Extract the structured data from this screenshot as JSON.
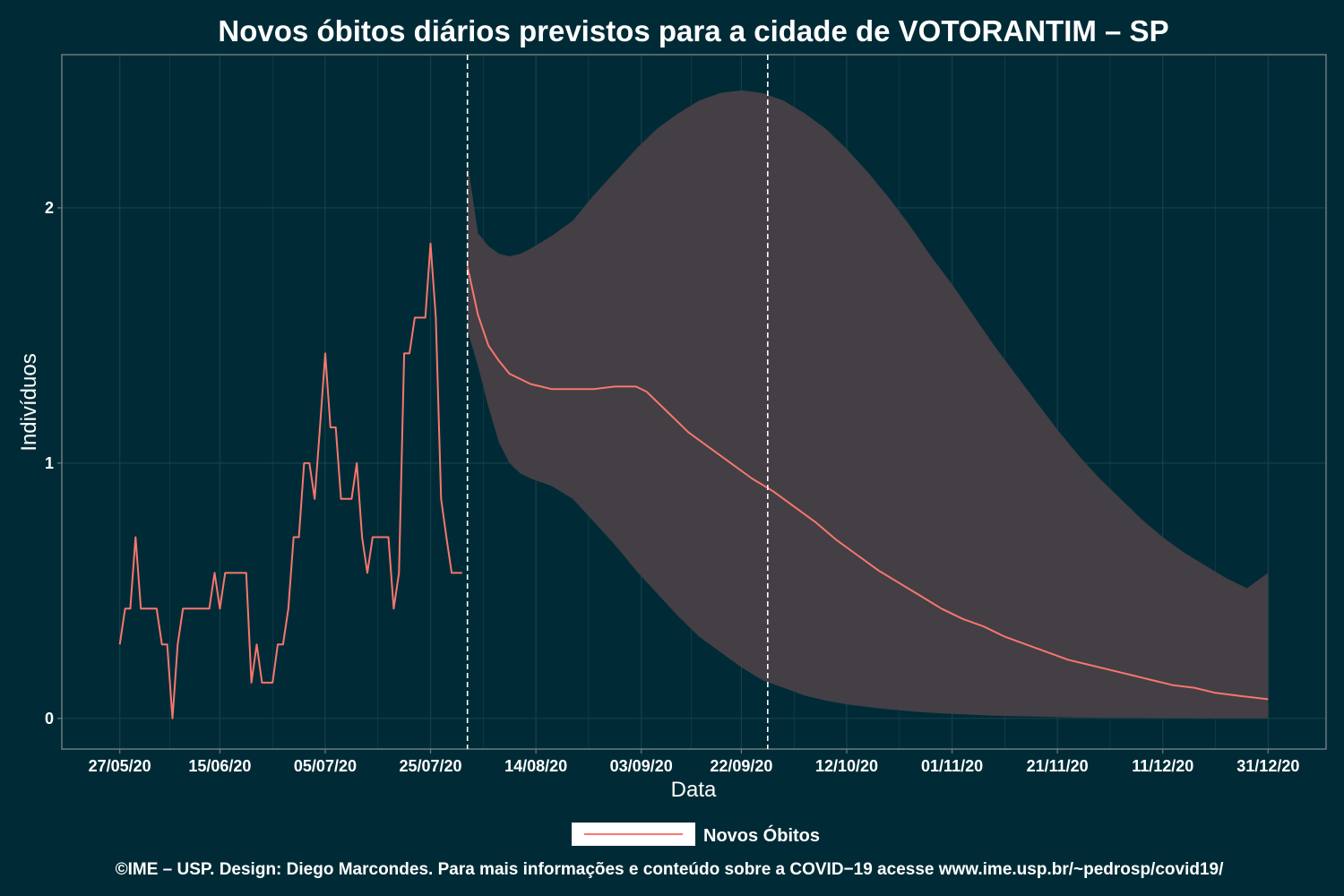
{
  "chart_data": {
    "type": "line",
    "title": "Novos óbitos diários previstos para a cidade de VOTORANTIM – SP",
    "xlabel": "Data",
    "ylabel": "Indivíduos",
    "x_ticks": [
      {
        "label": "27/05/20",
        "day": 0
      },
      {
        "label": "15/06/20",
        "day": 19
      },
      {
        "label": "05/07/20",
        "day": 39
      },
      {
        "label": "25/07/20",
        "day": 59
      },
      {
        "label": "14/08/20",
        "day": 79
      },
      {
        "label": "03/09/20",
        "day": 99
      },
      {
        "label": "22/09/20",
        "day": 118
      },
      {
        "label": "12/10/20",
        "day": 138
      },
      {
        "label": "01/11/20",
        "day": 158
      },
      {
        "label": "21/11/20",
        "day": 178
      },
      {
        "label": "11/12/20",
        "day": 198
      },
      {
        "label": "31/12/20",
        "day": 218
      }
    ],
    "y_ticks": [
      {
        "label": "0",
        "value": 0
      },
      {
        "label": "1",
        "value": 1
      },
      {
        "label": "2",
        "value": 2
      }
    ],
    "xlim_day": [
      -11,
      229
    ],
    "ylim": [
      -0.12,
      2.6
    ],
    "vlines_day": [
      66,
      123
    ],
    "grid": true,
    "legend": {
      "label": "Novos Óbitos",
      "position": "bottom"
    },
    "colors": {
      "line": "#f8766d",
      "band": "#433f45",
      "background": "#002b36",
      "grid": "#15404c",
      "text": "#ffffff"
    },
    "observed": [
      [
        0,
        0.29
      ],
      [
        1,
        0.43
      ],
      [
        2,
        0.43
      ],
      [
        3,
        0.71
      ],
      [
        4,
        0.43
      ],
      [
        5,
        0.43
      ],
      [
        6,
        0.43
      ],
      [
        7,
        0.43
      ],
      [
        8,
        0.29
      ],
      [
        9,
        0.29
      ],
      [
        10,
        0.0
      ],
      [
        11,
        0.29
      ],
      [
        12,
        0.43
      ],
      [
        13,
        0.43
      ],
      [
        14,
        0.43
      ],
      [
        15,
        0.43
      ],
      [
        16,
        0.43
      ],
      [
        17,
        0.43
      ],
      [
        18,
        0.57
      ],
      [
        19,
        0.43
      ],
      [
        20,
        0.57
      ],
      [
        21,
        0.57
      ],
      [
        22,
        0.57
      ],
      [
        23,
        0.57
      ],
      [
        24,
        0.57
      ],
      [
        25,
        0.14
      ],
      [
        26,
        0.29
      ],
      [
        27,
        0.14
      ],
      [
        28,
        0.14
      ],
      [
        29,
        0.14
      ],
      [
        30,
        0.29
      ],
      [
        31,
        0.29
      ],
      [
        32,
        0.43
      ],
      [
        33,
        0.71
      ],
      [
        34,
        0.71
      ],
      [
        35,
        1.0
      ],
      [
        36,
        1.0
      ],
      [
        37,
        0.86
      ],
      [
        38,
        1.14
      ],
      [
        39,
        1.43
      ],
      [
        40,
        1.14
      ],
      [
        41,
        1.14
      ],
      [
        42,
        0.86
      ],
      [
        43,
        0.86
      ],
      [
        44,
        0.86
      ],
      [
        45,
        1.0
      ],
      [
        46,
        0.71
      ],
      [
        47,
        0.57
      ],
      [
        48,
        0.71
      ],
      [
        49,
        0.71
      ],
      [
        50,
        0.71
      ],
      [
        51,
        0.71
      ],
      [
        52,
        0.43
      ],
      [
        53,
        0.57
      ],
      [
        54,
        1.43
      ],
      [
        55,
        1.43
      ],
      [
        56,
        1.57
      ],
      [
        57,
        1.57
      ],
      [
        58,
        1.57
      ],
      [
        59,
        1.86
      ],
      [
        60,
        1.57
      ],
      [
        61,
        0.86
      ],
      [
        62,
        0.71
      ],
      [
        63,
        0.57
      ],
      [
        64,
        0.57
      ],
      [
        65,
        0.57
      ]
    ],
    "forecast": [
      [
        66,
        1.77
      ],
      [
        68,
        1.58
      ],
      [
        70,
        1.46
      ],
      [
        72,
        1.4
      ],
      [
        74,
        1.35
      ],
      [
        76,
        1.33
      ],
      [
        78,
        1.31
      ],
      [
        80,
        1.3
      ],
      [
        82,
        1.29
      ],
      [
        86,
        1.29
      ],
      [
        90,
        1.29
      ],
      [
        94,
        1.3
      ],
      [
        98,
        1.3
      ],
      [
        100,
        1.28
      ],
      [
        104,
        1.2
      ],
      [
        108,
        1.12
      ],
      [
        112,
        1.06
      ],
      [
        116,
        1.0
      ],
      [
        120,
        0.94
      ],
      [
        124,
        0.89
      ],
      [
        128,
        0.83
      ],
      [
        132,
        0.77
      ],
      [
        136,
        0.7
      ],
      [
        140,
        0.64
      ],
      [
        144,
        0.58
      ],
      [
        148,
        0.53
      ],
      [
        152,
        0.48
      ],
      [
        156,
        0.43
      ],
      [
        160,
        0.39
      ],
      [
        164,
        0.36
      ],
      [
        168,
        0.32
      ],
      [
        172,
        0.29
      ],
      [
        176,
        0.26
      ],
      [
        180,
        0.23
      ],
      [
        184,
        0.21
      ],
      [
        188,
        0.19
      ],
      [
        192,
        0.17
      ],
      [
        196,
        0.15
      ],
      [
        200,
        0.13
      ],
      [
        204,
        0.12
      ],
      [
        208,
        0.1
      ],
      [
        212,
        0.09
      ],
      [
        216,
        0.08
      ],
      [
        218,
        0.075
      ]
    ],
    "upper": [
      [
        66,
        2.18
      ],
      [
        68,
        1.9
      ],
      [
        70,
        1.85
      ],
      [
        72,
        1.82
      ],
      [
        74,
        1.81
      ],
      [
        76,
        1.82
      ],
      [
        78,
        1.84
      ],
      [
        82,
        1.89
      ],
      [
        86,
        1.95
      ],
      [
        90,
        2.05
      ],
      [
        94,
        2.14
      ],
      [
        98,
        2.23
      ],
      [
        102,
        2.31
      ],
      [
        106,
        2.37
      ],
      [
        110,
        2.42
      ],
      [
        114,
        2.45
      ],
      [
        118,
        2.46
      ],
      [
        122,
        2.45
      ],
      [
        126,
        2.42
      ],
      [
        130,
        2.37
      ],
      [
        134,
        2.31
      ],
      [
        138,
        2.23
      ],
      [
        142,
        2.14
      ],
      [
        146,
        2.04
      ],
      [
        150,
        1.93
      ],
      [
        154,
        1.81
      ],
      [
        158,
        1.7
      ],
      [
        162,
        1.58
      ],
      [
        166,
        1.46
      ],
      [
        170,
        1.35
      ],
      [
        174,
        1.24
      ],
      [
        178,
        1.13
      ],
      [
        182,
        1.03
      ],
      [
        186,
        0.94
      ],
      [
        190,
        0.86
      ],
      [
        194,
        0.78
      ],
      [
        198,
        0.71
      ],
      [
        202,
        0.65
      ],
      [
        206,
        0.6
      ],
      [
        210,
        0.55
      ],
      [
        214,
        0.51
      ],
      [
        218,
        0.57
      ]
    ],
    "lower": [
      [
        66,
        1.52
      ],
      [
        68,
        1.38
      ],
      [
        70,
        1.22
      ],
      [
        72,
        1.08
      ],
      [
        74,
        1.0
      ],
      [
        76,
        0.96
      ],
      [
        78,
        0.94
      ],
      [
        82,
        0.91
      ],
      [
        86,
        0.86
      ],
      [
        90,
        0.77
      ],
      [
        94,
        0.68
      ],
      [
        98,
        0.58
      ],
      [
        102,
        0.49
      ],
      [
        106,
        0.4
      ],
      [
        110,
        0.32
      ],
      [
        114,
        0.26
      ],
      [
        118,
        0.2
      ],
      [
        122,
        0.15
      ],
      [
        126,
        0.12
      ],
      [
        130,
        0.09
      ],
      [
        134,
        0.07
      ],
      [
        138,
        0.055
      ],
      [
        142,
        0.045
      ],
      [
        146,
        0.035
      ],
      [
        150,
        0.028
      ],
      [
        154,
        0.022
      ],
      [
        158,
        0.018
      ],
      [
        162,
        0.014
      ],
      [
        166,
        0.011
      ],
      [
        170,
        0.009
      ],
      [
        174,
        0.007
      ],
      [
        178,
        0.005
      ],
      [
        182,
        0.004
      ],
      [
        186,
        0.003
      ],
      [
        190,
        0.002
      ],
      [
        194,
        0.002
      ],
      [
        198,
        0.001
      ],
      [
        202,
        0.001
      ],
      [
        206,
        0.0
      ],
      [
        210,
        0.0
      ],
      [
        214,
        0.0
      ],
      [
        218,
        0.0
      ]
    ]
  },
  "footer": "©IME – USP. Design: Diego Marcondes. Para mais informações e conteúdo sobre a COVID−19 acesse www.ime.usp.br/~pedrosp/covid19/"
}
